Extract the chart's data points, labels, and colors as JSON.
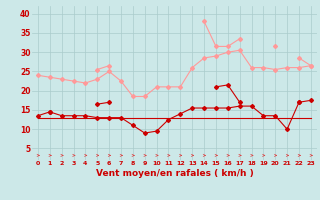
{
  "x": [
    0,
    1,
    2,
    3,
    4,
    5,
    6,
    7,
    8,
    9,
    10,
    11,
    12,
    13,
    14,
    15,
    16,
    17,
    18,
    19,
    20,
    21,
    22,
    23
  ],
  "line_rafales_max": [
    null,
    null,
    null,
    null,
    null,
    25.5,
    26.5,
    null,
    null,
    null,
    null,
    null,
    null,
    null,
    38,
    31.5,
    31.5,
    33.5,
    null,
    null,
    31.5,
    null,
    28.5,
    26.5
  ],
  "line_rafales_mean": [
    24,
    23.5,
    23,
    22.5,
    22,
    23,
    25,
    22.5,
    18.5,
    18.5,
    21,
    21,
    21,
    26,
    28.5,
    29,
    30,
    30.5,
    26,
    26,
    25.5,
    26,
    26,
    26.5
  ],
  "line_vent_max": [
    null,
    14.5,
    null,
    null,
    null,
    16.5,
    17,
    null,
    null,
    null,
    null,
    null,
    null,
    null,
    null,
    21,
    21.5,
    17,
    null,
    null,
    null,
    null,
    17,
    null
  ],
  "line_vent_mean": [
    13.5,
    14.5,
    13.5,
    13.5,
    13.5,
    13,
    13,
    13,
    11,
    9,
    9.5,
    12.5,
    14,
    15.5,
    15.5,
    15.5,
    15.5,
    16,
    16,
    13.5,
    13.5,
    10,
    17,
    17.5
  ],
  "line_vent_min": [
    13,
    13,
    13,
    13,
    13,
    13,
    13,
    13,
    13,
    13,
    13,
    13,
    13,
    13,
    13,
    13,
    13,
    13,
    13,
    13,
    13,
    13,
    13,
    13
  ],
  "background_color": "#cce8e8",
  "grid_color": "#aacccc",
  "color_rafales": "#ff9999",
  "color_vent_dark": "#cc0000",
  "xlabel": "Vent moyen/en rafales ( km/h )",
  "ylim": [
    2,
    42
  ],
  "yticks": [
    5,
    10,
    15,
    20,
    25,
    30,
    35,
    40
  ],
  "xlim": [
    -0.5,
    23.5
  ],
  "tick_color": "#cc0000",
  "xtick_fontsize": 4.5,
  "ytick_fontsize": 5.5
}
